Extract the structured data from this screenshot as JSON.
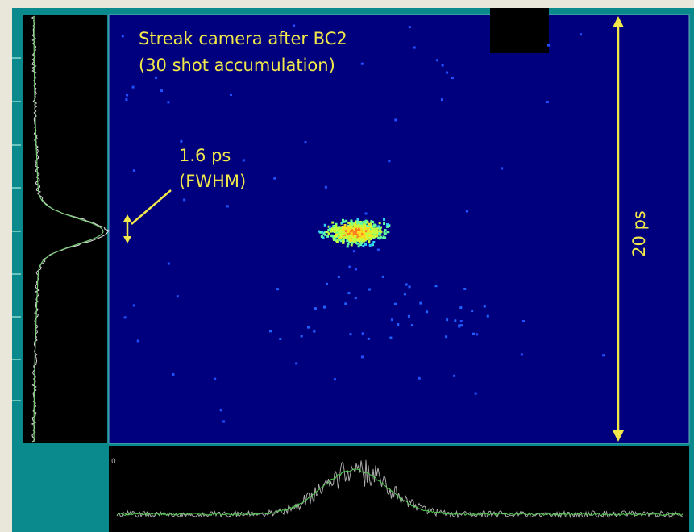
{
  "image": {
    "caption_line1": "Streak camera after BC2",
    "caption_line2": "(30 shot accumulation)",
    "width_label": "1.6 ps",
    "width_note": "(FWHM)",
    "range_label": "20 ps",
    "lineout_zero": "0"
  }
}
